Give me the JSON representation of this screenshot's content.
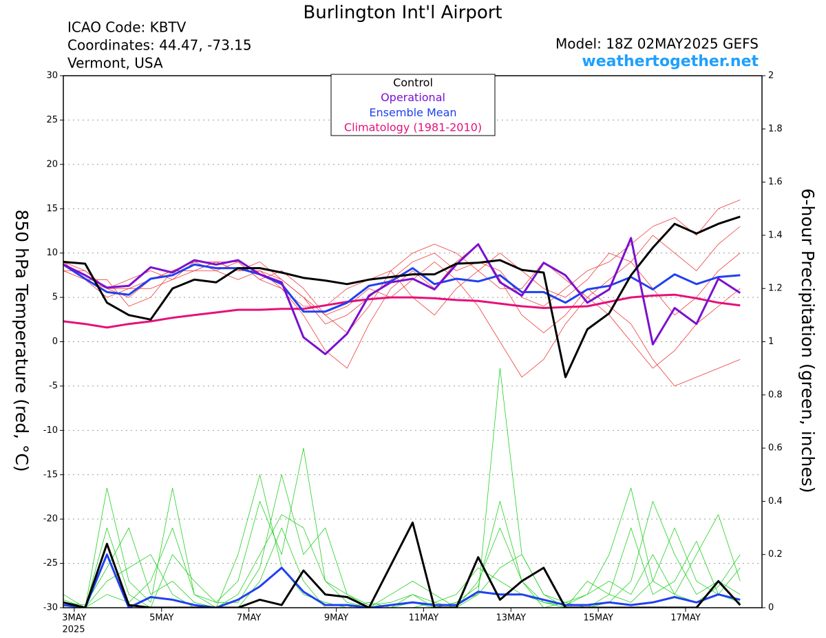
{
  "chart_data": {
    "type": "line",
    "title": "Burlington Int'l Airport",
    "info": [
      "ICAO Code: KBTV",
      "Coordinates: 44.47, -73.15",
      "Vermont, USA"
    ],
    "model": "Model: 18Z 02MAY2025 GEFS",
    "site": "weathertogether.net",
    "y_label": "850 hPa Temperature (red, °C)",
    "y2_label": "6-hour Precipitation (green, inches)",
    "x_year": "2025",
    "xlim": [
      0,
      384
    ],
    "xticks": [
      {
        "value": 6,
        "label": "3MAY"
      },
      {
        "value": 54,
        "label": "5MAY"
      },
      {
        "value": 102,
        "label": "7MAY"
      },
      {
        "value": 150,
        "label": "9MAY"
      },
      {
        "value": 198,
        "label": "11MAY"
      },
      {
        "value": 246,
        "label": "13MAY"
      },
      {
        "value": 294,
        "label": "15MAY"
      },
      {
        "value": 342,
        "label": "17MAY"
      }
    ],
    "ylim": [
      -30,
      30
    ],
    "yticks": [
      -30,
      -25,
      -20,
      -15,
      -10,
      -5,
      0,
      5,
      10,
      15,
      20,
      25,
      30
    ],
    "y2lim": [
      0,
      2
    ],
    "y2ticks": [
      0,
      0.2,
      0.4,
      0.6,
      0.8,
      1,
      1.2,
      1.4,
      1.6,
      1.8,
      2
    ],
    "grid": true,
    "x": [
      0,
      12,
      24,
      36,
      48,
      60,
      72,
      84,
      96,
      108,
      120,
      132,
      144,
      156,
      168,
      180,
      192,
      204,
      216,
      228,
      240,
      252,
      264,
      276,
      288,
      300,
      312,
      324,
      336,
      348,
      360,
      372
    ],
    "series": [
      {
        "color": "#f03a3a",
        "width": 0.8,
        "values": [
          9,
          8,
          6,
          5,
          7,
          8,
          9,
          9,
          8,
          8,
          7,
          5,
          2,
          3,
          5,
          7,
          9,
          10,
          8,
          9,
          8,
          5,
          4,
          6,
          8,
          9,
          11,
          13,
          14,
          12,
          15,
          16
        ]
      },
      {
        "color": "#f03a3a",
        "width": 0.8,
        "values": [
          8,
          7,
          5,
          6,
          6,
          7,
          8,
          9,
          9,
          7,
          6,
          3,
          -1,
          -3,
          2,
          6,
          8,
          6,
          9,
          11,
          7,
          3,
          1,
          3,
          6,
          4,
          2,
          -2,
          -5,
          -4,
          -3,
          -2
        ]
      },
      {
        "color": "#f03a3a",
        "width": 0.8,
        "values": [
          9,
          7,
          7,
          4,
          5,
          8,
          8,
          8,
          7,
          8,
          6,
          4,
          4,
          6,
          7,
          8,
          5,
          3,
          6,
          8,
          10,
          8,
          6,
          5,
          7,
          10,
          9,
          6,
          3,
          5,
          8,
          10
        ]
      },
      {
        "color": "#f03a3a",
        "width": 0.8,
        "values": [
          8,
          8,
          6,
          7,
          8,
          7,
          9,
          8,
          9,
          7,
          8,
          6,
          3,
          1,
          4,
          8,
          10,
          11,
          10,
          8,
          6,
          6,
          9,
          7,
          5,
          3,
          0,
          -3,
          -1,
          2,
          4,
          6
        ]
      },
      {
        "color": "#f03a3a",
        "width": 0.8,
        "values": [
          9,
          7,
          6,
          6,
          7,
          8,
          8,
          9,
          8,
          9,
          7,
          5,
          3,
          4,
          6,
          5,
          7,
          9,
          7,
          4,
          0,
          -4,
          -2,
          2,
          5,
          7,
          9,
          12,
          10,
          8,
          11,
          13
        ]
      },
      {
        "color": "#22d022",
        "width": 0.8,
        "axis": "y2",
        "values": [
          0.02,
          0,
          0.45,
          0.1,
          0.02,
          0.45,
          0.05,
          0,
          0,
          0.1,
          0.3,
          0.1,
          0,
          0,
          0,
          0,
          0.05,
          0,
          0.02,
          0.05,
          0.9,
          0.2,
          0.05,
          0,
          0,
          0.02,
          0.1,
          0.4,
          0.2,
          0.05,
          0.1,
          0.05
        ]
      },
      {
        "color": "#22d022",
        "width": 0.8,
        "axis": "y2",
        "values": [
          0.05,
          0,
          0.3,
          0.05,
          0,
          0.2,
          0.1,
          0.02,
          0.1,
          0.4,
          0.2,
          0.6,
          0.1,
          0.02,
          0,
          0.05,
          0.1,
          0.05,
          0,
          0.1,
          0.3,
          0.1,
          0,
          0.02,
          0.05,
          0.2,
          0.45,
          0.1,
          0.05,
          0.2,
          0.35,
          0.1
        ]
      },
      {
        "color": "#22d022",
        "width": 0.8,
        "axis": "y2",
        "values": [
          0.02,
          0.01,
          0.15,
          0.3,
          0.05,
          0.1,
          0.02,
          0,
          0.2,
          0.5,
          0.15,
          0.05,
          0.02,
          0,
          0.02,
          0,
          0,
          0.02,
          0.05,
          0.15,
          0.1,
          0.05,
          0.02,
          0,
          0.1,
          0.05,
          0.02,
          0.1,
          0.3,
          0.1,
          0.05,
          0.15
        ]
      },
      {
        "color": "#22d022",
        "width": 0.8,
        "axis": "y2",
        "values": [
          0.03,
          0,
          0.1,
          0.15,
          0.2,
          0.05,
          0,
          0,
          0.05,
          0.2,
          0.35,
          0.3,
          0.1,
          0.05,
          0.01,
          0.02,
          0.05,
          0.02,
          0,
          0.05,
          0.15,
          0.2,
          0.05,
          0.02,
          0,
          0.05,
          0.3,
          0.05,
          0.1,
          0.25,
          0.05,
          0.02
        ]
      },
      {
        "color": "#22d022",
        "width": 0.8,
        "axis": "y2",
        "values": [
          0.01,
          0,
          0.05,
          0.02,
          0.1,
          0.3,
          0.05,
          0.02,
          0.02,
          0.15,
          0.5,
          0.2,
          0.3,
          0.05,
          0,
          0,
          0.02,
          0,
          0.02,
          0.08,
          0.4,
          0.1,
          0.02,
          0.01,
          0.05,
          0.1,
          0.05,
          0.2,
          0.05,
          0.02,
          0.08,
          0.2
        ]
      },
      {
        "name": "Climatology (1981-2010)",
        "color": "#e5107a",
        "width": 3,
        "values": [
          2.3,
          2.0,
          1.6,
          2.0,
          2.3,
          2.7,
          3.0,
          3.3,
          3.6,
          3.6,
          3.7,
          3.7,
          4.1,
          4.5,
          4.8,
          5.0,
          5.0,
          4.9,
          4.7,
          4.6,
          4.3,
          4.0,
          3.8,
          3.9,
          4.0,
          4.5,
          5.0,
          5.2,
          5.3,
          4.9,
          4.4,
          4.1
        ]
      },
      {
        "name": "Ensemble Mean",
        "color": "#2040f0",
        "width": 3,
        "values": [
          8.7,
          7.1,
          5.6,
          5.3,
          7.1,
          7.5,
          8.7,
          8.3,
          8.3,
          7.6,
          6.5,
          3.4,
          3.4,
          4.4,
          6.3,
          6.8,
          8.3,
          6.5,
          7.1,
          6.8,
          7.5,
          5.6,
          5.6,
          4.4,
          5.9,
          6.3,
          7.3,
          5.9,
          7.6,
          6.5,
          7.3,
          7.5
        ]
      },
      {
        "name": "Operational",
        "color": "#7a10d0",
        "width": 3,
        "values": [
          8.7,
          7.5,
          6.1,
          6.3,
          8.4,
          7.8,
          9.2,
          8.7,
          9.2,
          7.6,
          6.7,
          0.5,
          -1.4,
          0.9,
          5.2,
          6.7,
          7.1,
          5.9,
          8.7,
          11,
          6.7,
          5.2,
          8.9,
          7.5,
          4.4,
          5.9,
          11.7,
          -0.3,
          3.8,
          2,
          7.1,
          5.5
        ]
      },
      {
        "name": "Control",
        "color": "#000000",
        "width": 3,
        "values": [
          9,
          8.8,
          4.4,
          3,
          2.5,
          6,
          7,
          6.7,
          8.3,
          8.3,
          7.8,
          7.2,
          6.9,
          6.5,
          7,
          7.3,
          7.6,
          7.6,
          8.8,
          8.9,
          9.2,
          8.1,
          7.8,
          -4,
          1.4,
          3.2,
          7.5,
          10.6,
          13.3,
          12.2,
          13.3,
          14.1
        ]
      },
      {
        "color": "#2040f0",
        "width": 3,
        "axis": "y2",
        "values": [
          0.01,
          0,
          0.2,
          0,
          0.04,
          0.03,
          0.01,
          0,
          0.03,
          0.08,
          0.15,
          0.06,
          0.01,
          0.01,
          0,
          0.01,
          0.02,
          0.01,
          0.01,
          0.06,
          0.05,
          0.05,
          0.03,
          0.01,
          0.01,
          0.02,
          0.01,
          0.02,
          0.04,
          0.02,
          0.05,
          0.03
        ]
      },
      {
        "color": "#000000",
        "width": 3,
        "axis": "y2",
        "values": [
          0.02,
          0,
          0.24,
          0.01,
          0,
          0,
          0,
          0,
          0,
          0.03,
          0.01,
          0.14,
          0.05,
          0.04,
          0,
          0.16,
          0.32,
          0,
          0,
          0.19,
          0.03,
          0.1,
          0.15,
          0,
          0,
          0,
          0,
          0,
          0,
          0,
          0.1,
          0.01
        ]
      }
    ],
    "legend_order": [
      13,
      12,
      11,
      10
    ]
  }
}
